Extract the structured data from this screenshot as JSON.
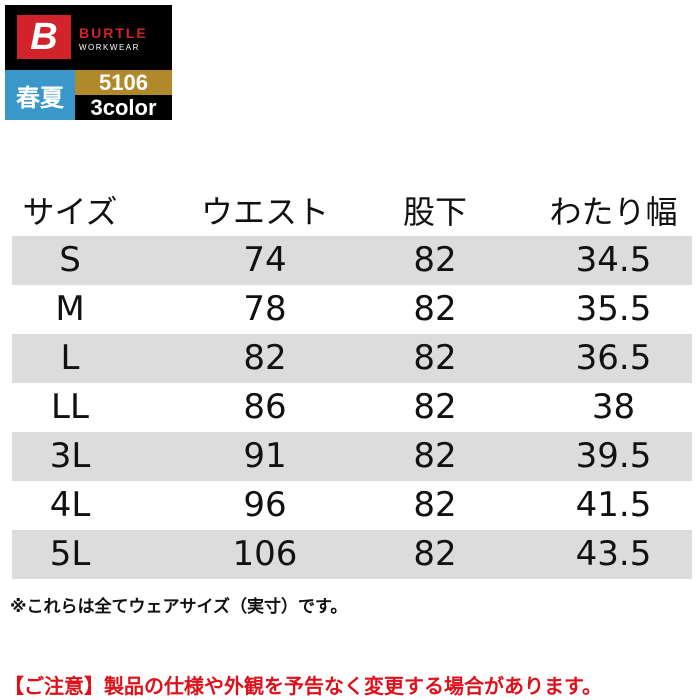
{
  "badge": {
    "brand": "BURTLE",
    "brand_sub": "WORKWEAR",
    "logo_letter": "B",
    "season": "春夏",
    "model": "5106",
    "colors": "3color",
    "brand_color": "#d2232a",
    "season_color": "#3a97c9",
    "model_color": "#b08a2a"
  },
  "table": {
    "headers": [
      "サイズ",
      "ウエスト",
      "股下",
      "わたり幅"
    ],
    "rows": [
      [
        "S",
        "74",
        "82",
        "34.5"
      ],
      [
        "M",
        "78",
        "82",
        "35.5"
      ],
      [
        "L",
        "82",
        "82",
        "36.5"
      ],
      [
        "LL",
        "86",
        "82",
        "38"
      ],
      [
        "3L",
        "91",
        "82",
        "39.5"
      ],
      [
        "4L",
        "96",
        "82",
        "41.5"
      ],
      [
        "5L",
        "106",
        "82",
        "43.5"
      ]
    ]
  },
  "note": "※これらは全てウェアサイズ（実寸）です。",
  "warning": "【ご注意】製品の仕様や外観を予告なく変更する場合があります。"
}
